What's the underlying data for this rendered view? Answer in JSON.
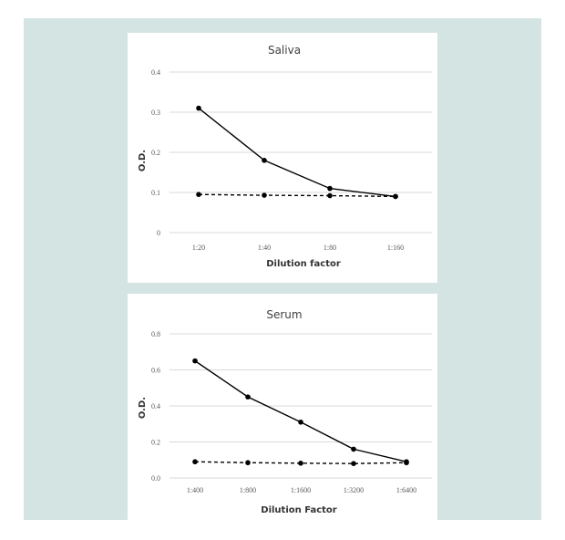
{
  "chart_data": [
    {
      "type": "line",
      "title": "Saliva",
      "xlabel": "Dilution factor",
      "ylabel": "O.D.",
      "categories": [
        "1:20",
        "1:40",
        "1:80",
        "1:160"
      ],
      "ylim": [
        0,
        0.4
      ],
      "yticks": [
        "0",
        "0.1",
        "0.2",
        "0.3",
        "0.4"
      ],
      "grid": true,
      "series": [
        {
          "style": "solid",
          "values": [
            0.31,
            0.18,
            0.11,
            0.09
          ]
        },
        {
          "style": "dashed",
          "values": [
            0.095,
            0.093,
            0.092,
            0.09
          ]
        }
      ]
    },
    {
      "type": "line",
      "title": "Serum",
      "xlabel": "Dilution Factor",
      "ylabel": "O.D.",
      "categories": [
        "1:400",
        "1:800",
        "1:1600",
        "1:3200",
        "1:6400"
      ],
      "ylim": [
        0,
        0.8
      ],
      "yticks": [
        "0.0",
        "0.2",
        "0.4",
        "0.6",
        "0.8"
      ],
      "grid": true,
      "series": [
        {
          "style": "solid",
          "values": [
            0.65,
            0.45,
            0.31,
            0.16,
            0.09
          ]
        },
        {
          "style": "dashed",
          "values": [
            0.09,
            0.085,
            0.082,
            0.08,
            0.085
          ]
        }
      ]
    }
  ]
}
